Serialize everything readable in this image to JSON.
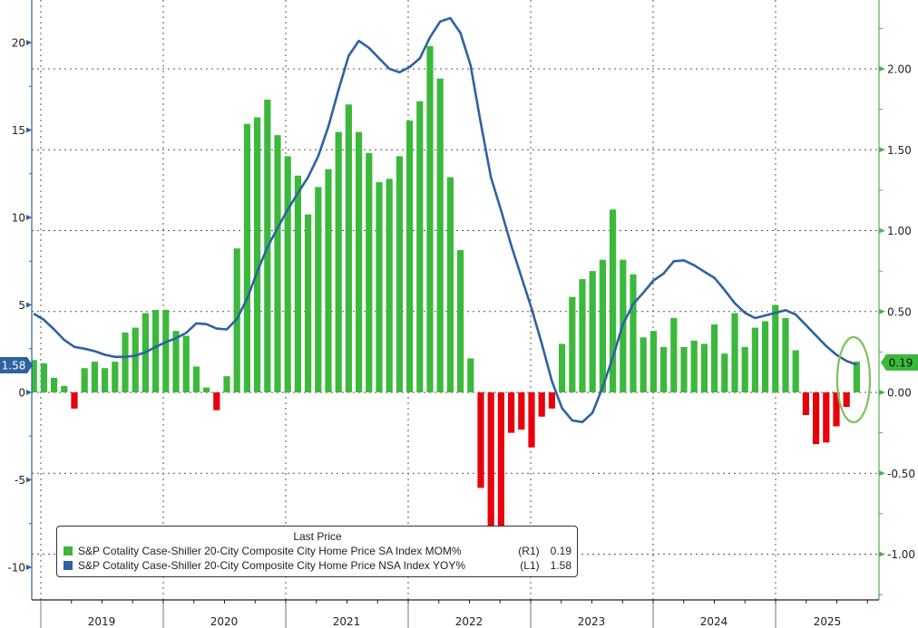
{
  "chart_data": {
    "type": "bar+line",
    "title": "",
    "legend": {
      "title": "Last Price",
      "placement": "bottom-left",
      "entries": [
        {
          "label": "S&P Cotality Case-Shiller 20-City Composite City Home Price SA Index MOM%",
          "axis": "(R1)",
          "last": "0.19",
          "color": "#3cb93c"
        },
        {
          "label": "S&P Cotality Case-Shiller 20-City Composite City Home Price NSA Index YOY%",
          "axis": "(L1)",
          "last": "1.58",
          "color": "#2e62a0"
        }
      ]
    },
    "x_ticks": [
      "2019",
      "2020",
      "2021",
      "2022",
      "2023",
      "2024",
      "2025"
    ],
    "left_axis": {
      "range": [
        -12,
        22.4
      ],
      "ticks": [
        "20",
        "15",
        "10",
        "5",
        "0",
        "-5",
        "-10"
      ],
      "tick_values": [
        20,
        15,
        10,
        5,
        0,
        -5,
        -10
      ],
      "color": "#2e62a0"
    },
    "right_axis": {
      "range": [
        -1.25,
        2.43
      ],
      "ticks": [
        "2.00",
        "1.50",
        "1.00",
        "0.50",
        "0.00",
        "-0.50",
        "-1.00"
      ],
      "tick_values": [
        2,
        1.5,
        1,
        0.5,
        0,
        -0.5,
        -1
      ],
      "color": "#3cb93c"
    },
    "grid": true,
    "series": [
      {
        "name": "S&P Cotality Case-Shiller 20-City Composite City Home Price SA Index MOM%",
        "type": "bar",
        "axis": "right",
        "positive_color": "#3cb93c",
        "negative_color": "#e8000b",
        "values": [
          0.2,
          0.18,
          0.09,
          0.04,
          -0.1,
          0.15,
          0.19,
          0.15,
          0.19,
          0.37,
          0.4,
          0.49,
          0.51,
          0.51,
          0.38,
          0.35,
          0.16,
          0.03,
          -0.11,
          0.1,
          0.89,
          1.66,
          1.7,
          1.81,
          1.59,
          1.46,
          1.34,
          1.1,
          1.27,
          1.38,
          1.61,
          1.78,
          1.61,
          1.48,
          1.3,
          1.32,
          1.46,
          1.68,
          1.8,
          2.14,
          1.94,
          1.33,
          0.88,
          0.21,
          -0.59,
          -0.9,
          -0.85,
          -0.25,
          -0.23,
          -0.34,
          -0.15,
          -0.1,
          0.3,
          0.59,
          0.7,
          0.75,
          0.82,
          1.13,
          0.82,
          0.73,
          0.34,
          0.38,
          0.28,
          0.46,
          0.28,
          0.32,
          0.3,
          0.42,
          0.24,
          0.49,
          0.28,
          0.4,
          0.44,
          0.54,
          0.46,
          0.26,
          -0.14,
          -0.32,
          -0.31,
          -0.21,
          -0.09,
          0.19
        ]
      },
      {
        "name": "S&P Cotality Case-Shiller 20-City Composite City Home Price NSA Index YOY%",
        "type": "line",
        "axis": "left",
        "color": "#2e62a0",
        "values": [
          4.5,
          4.15,
          3.6,
          3.0,
          2.6,
          2.5,
          2.36,
          2.15,
          2.03,
          2.03,
          2.1,
          2.3,
          2.6,
          2.87,
          3.1,
          3.4,
          3.95,
          3.9,
          3.65,
          3.6,
          4.2,
          5.35,
          6.9,
          8.3,
          9.4,
          10.45,
          11.4,
          12.3,
          13.5,
          15.2,
          17.3,
          19.25,
          20.1,
          19.7,
          19.1,
          18.5,
          18.3,
          18.6,
          19.1,
          20.3,
          21.2,
          21.4,
          20.55,
          18.7,
          15.4,
          12.3,
          10.4,
          8.4,
          6.6,
          4.8,
          2.8,
          0.65,
          -0.9,
          -1.6,
          -1.7,
          -1.16,
          0.3,
          2.0,
          3.9,
          5.05,
          5.7,
          6.4,
          6.8,
          7.5,
          7.55,
          7.27,
          6.9,
          6.55,
          5.85,
          5.1,
          4.55,
          4.25,
          4.4,
          4.55,
          4.7,
          4.45,
          3.85,
          3.25,
          2.65,
          2.15,
          1.8,
          1.58
        ]
      }
    ],
    "last_value_tags": {
      "left": "1.58",
      "right": "0.19"
    },
    "annotation": {
      "type": "ellipse",
      "target": "last bar",
      "color": "#7cc35a"
    }
  }
}
